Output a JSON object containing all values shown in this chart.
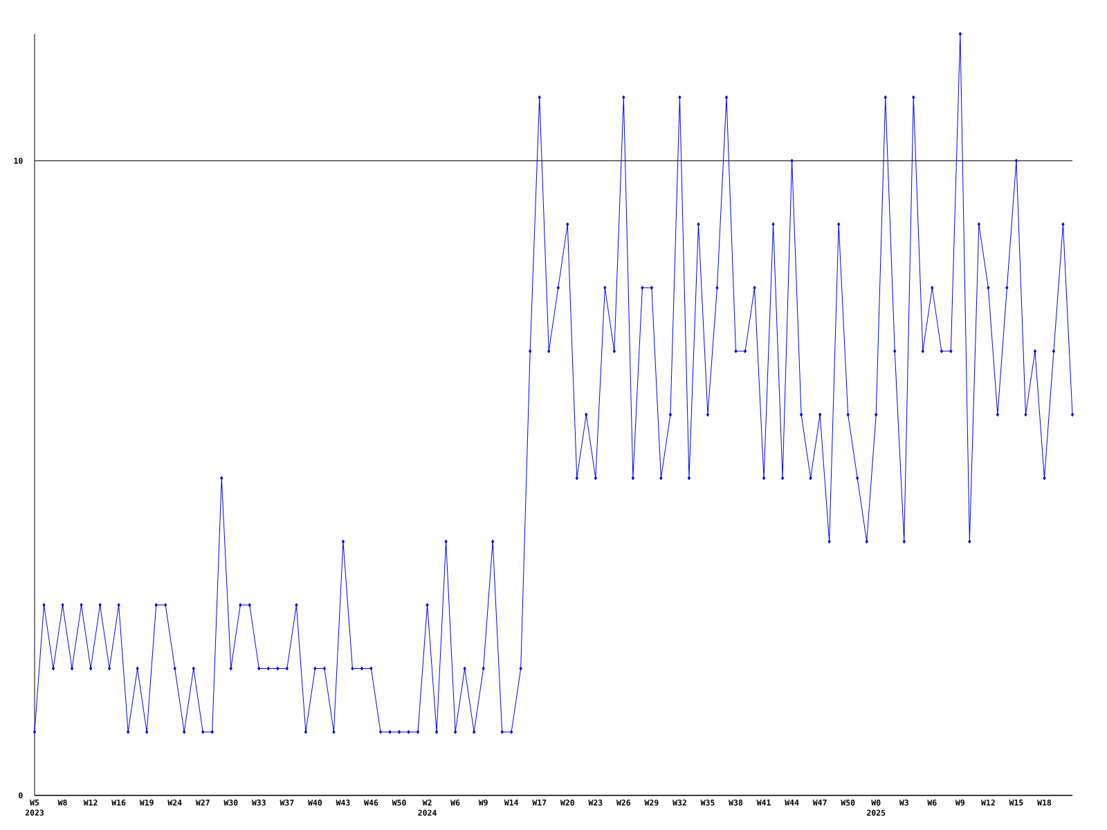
{
  "chart_data": {
    "type": "line",
    "categories": [
      "W5 2023",
      null,
      null,
      "W8",
      null,
      null,
      "W12",
      null,
      null,
      "W16",
      null,
      null,
      "W19",
      null,
      null,
      "W24",
      null,
      null,
      "W27",
      null,
      null,
      "W30",
      null,
      null,
      "W33",
      null,
      null,
      "W37",
      null,
      null,
      "W40",
      null,
      null,
      "W43",
      null,
      null,
      "W46",
      null,
      null,
      "W50",
      null,
      null,
      "W2 2024",
      null,
      null,
      "W6",
      null,
      null,
      "W9",
      null,
      null,
      "W14",
      null,
      null,
      "W17",
      null,
      null,
      "W20",
      null,
      null,
      "W23",
      null,
      null,
      "W26",
      null,
      null,
      "W29",
      null,
      null,
      "W32",
      null,
      null,
      "W35",
      null,
      null,
      "W38",
      null,
      null,
      "W41",
      null,
      null,
      "W44",
      null,
      null,
      "W47",
      null,
      null,
      "W50",
      null,
      null,
      "W0 2025",
      null,
      null,
      "W3",
      null,
      null,
      "W6",
      null,
      null,
      "W9",
      null,
      null,
      "W12",
      null,
      null,
      "W15",
      null,
      null,
      "W18",
      null,
      null,
      null
    ],
    "series": [
      {
        "color": "#0000ff",
        "values": [
          1,
          3,
          2,
          3,
          2,
          3,
          2,
          3,
          2,
          3,
          1,
          2,
          1,
          3,
          3,
          2,
          1,
          2,
          1,
          1,
          5,
          2,
          3,
          3,
          2,
          2,
          2,
          2,
          3,
          1,
          2,
          2,
          1,
          4,
          2,
          2,
          2,
          1,
          1,
          1,
          1,
          1,
          3,
          1,
          4,
          1,
          2,
          1,
          2,
          4,
          1,
          1,
          2,
          7,
          11,
          7,
          8,
          9,
          5,
          6,
          5,
          8,
          7,
          11,
          5,
          8,
          8,
          5,
          6,
          11,
          5,
          9,
          6,
          8,
          11,
          7,
          7,
          8,
          5,
          9,
          5,
          10,
          6,
          5,
          6,
          4,
          9,
          6,
          5,
          4,
          6,
          11,
          7,
          4,
          11,
          7,
          8,
          7,
          7,
          12,
          4,
          9,
          8,
          6,
          8,
          10,
          6,
          7,
          5,
          7,
          9,
          6
        ]
      }
    ],
    "ylim": [
      0,
      12
    ],
    "yticks": [
      0,
      10
    ],
    "grid": "y",
    "marker": "diamond"
  }
}
